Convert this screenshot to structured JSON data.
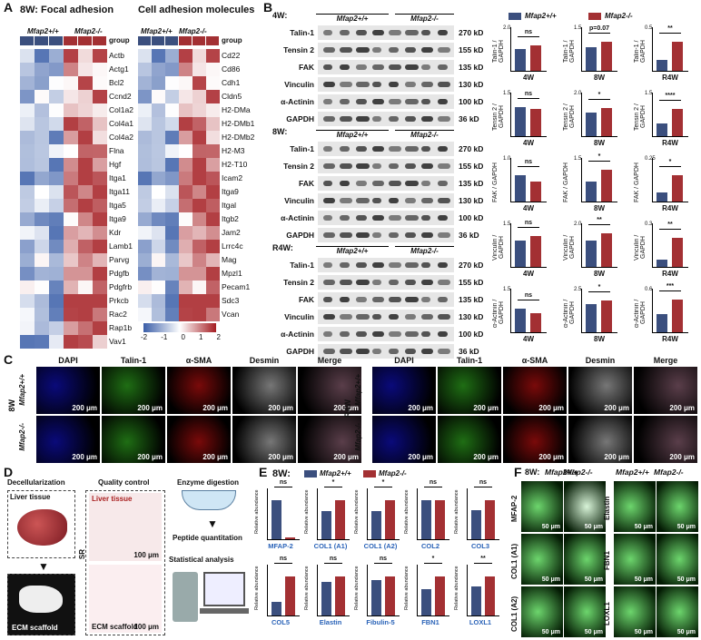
{
  "panels": {
    "A": "A",
    "B": "B",
    "C": "C",
    "D": "D",
    "E": "E",
    "F": "F"
  },
  "A": {
    "left_title": "8W:  Focal adhesion",
    "right_title": "Cell adhesion molecules",
    "group_label": "group",
    "wt": "Mfap2+/+",
    "ko": "Mfap2-/-",
    "left_genes": [
      "Actb",
      "Actg1",
      "Bcl2",
      "Ccnd2",
      "Col1a2",
      "Col4a1",
      "Col4a2",
      "Flna",
      "Hgf",
      "Itga1",
      "Itga11",
      "Itga5",
      "Itga9",
      "Kdr",
      "Lamb1",
      "Parvg",
      "Pdgfb",
      "Pdgfrb",
      "Prkcb",
      "Rac2",
      "Rap1b",
      "Vav1"
    ],
    "right_genes": [
      "Cd22",
      "Cd86",
      "Cdh1",
      "Cldn5",
      "H2-DMa",
      "H2-DMb1",
      "H2-DMb2",
      "H2-M3",
      "H2-T10",
      "Icam2",
      "Itga9",
      "Itgal",
      "Itgb2",
      "Jam2",
      "Lrrc4c",
      "Mag",
      "Mpzl1",
      "Pecam1",
      "Sdc3",
      "Vcan"
    ],
    "scale": [
      "-2",
      "-1",
      "0",
      "1",
      "2"
    ]
  },
  "B": {
    "legend": {
      "wt": "Mfap2+/+",
      "ko": "Mfap2-/-"
    },
    "blots": [
      {
        "time": "4W:",
        "rows": [
          "Talin-1",
          "Tensin 2",
          "FAK",
          "Vinculin",
          "α-Actinin",
          "GAPDH"
        ],
        "kd": [
          "270 kD",
          "155 kD",
          "135 kD",
          "130 kD",
          "100 kD",
          "36 kD"
        ]
      },
      {
        "time": "8W:",
        "rows": [
          "Talin-1",
          "Tensin 2",
          "FAK",
          "Vinculin",
          "α-Actinin",
          "GAPDH"
        ],
        "kd": [
          "270 kD",
          "155 kD",
          "135 kD",
          "130 kD",
          "100 kD",
          "36 kD"
        ]
      },
      {
        "time": "R4W:",
        "rows": [
          "Talin-1",
          "Tensin 2",
          "FAK",
          "Vinculin",
          "α-Actinin",
          "GAPDH"
        ],
        "kd": [
          "270 kD",
          "155 kD",
          "135 kD",
          "130 kD",
          "100 kD",
          "36 kD"
        ]
      }
    ],
    "bar_rows": [
      {
        "ylabel": "Talin-1 / GAPDH",
        "charts": [
          {
            "x": "4W",
            "sig": "ns",
            "wt": 1.0,
            "ko": 1.15,
            "ymax": "2.0"
          },
          {
            "x": "8W",
            "sig": "p=0.07",
            "wt": 0.8,
            "ko": 1.0,
            "ymax": "1.5"
          },
          {
            "x": "R4W",
            "sig": "**",
            "wt": 0.12,
            "ko": 0.33,
            "ymax": "0.5"
          }
        ]
      },
      {
        "ylabel": "Tensin 2 / GAPDH",
        "charts": [
          {
            "x": "4W",
            "sig": "ns",
            "wt": 1.0,
            "ko": 0.95,
            "ymax": "1.5"
          },
          {
            "x": "8W",
            "sig": "*",
            "wt": 1.1,
            "ko": 1.3,
            "ymax": "2.0"
          },
          {
            "x": "R4W",
            "sig": "****",
            "wt": 0.45,
            "ko": 0.95,
            "ymax": "1.5"
          }
        ]
      },
      {
        "ylabel": "FAK / GAPDH",
        "charts": [
          {
            "x": "4W",
            "sig": "ns",
            "wt": 0.6,
            "ko": 0.45,
            "ymax": "1.0"
          },
          {
            "x": "8W",
            "sig": "*",
            "wt": 0.7,
            "ko": 1.1,
            "ymax": "1.5"
          },
          {
            "x": "R4W",
            "sig": "*",
            "wt": 0.05,
            "ko": 0.15,
            "ymax": "0.25"
          }
        ]
      },
      {
        "ylabel": "Vinculin / GAPDH",
        "charts": [
          {
            "x": "4W",
            "sig": "ns",
            "wt": 0.9,
            "ko": 1.05,
            "ymax": "1.5"
          },
          {
            "x": "8W",
            "sig": "**",
            "wt": 1.2,
            "ko": 1.55,
            "ymax": "2.0"
          },
          {
            "x": "R4W",
            "sig": "**",
            "wt": 0.05,
            "ko": 0.2,
            "ymax": "0.3"
          }
        ]
      },
      {
        "ylabel": "α-Actinin / GAPDH",
        "charts": [
          {
            "x": "4W",
            "sig": "ns",
            "wt": 0.8,
            "ko": 0.65,
            "ymax": "1.5"
          },
          {
            "x": "8W",
            "sig": "*",
            "wt": 1.6,
            "ko": 1.8,
            "ymax": "2.5"
          },
          {
            "x": "R4W",
            "sig": "***",
            "wt": 0.25,
            "ko": 0.45,
            "ymax": "0.6"
          }
        ]
      }
    ]
  },
  "C": {
    "cols": [
      "DAPI",
      "Talin-1",
      "α-SMA",
      "Desmin",
      "Merge"
    ],
    "left_time": "8W",
    "right_time": "R4W",
    "rows": [
      "Mfap2+/+",
      "Mfap2-/-"
    ],
    "scale": "200 μm"
  },
  "D": {
    "decell": "Decellularization",
    "qc": "Quality control",
    "liver": "Liver tissue",
    "ecm": "ECM scaffold",
    "sr": "SR",
    "scale": "100 μm",
    "steps": [
      "Enzyme digestion",
      "Peptide quantitation",
      "Statistical analysis"
    ]
  },
  "E": {
    "time": "8W:",
    "legend": {
      "wt": "Mfap2+/+",
      "ko": "Mfap2-/-"
    },
    "ylabel": "Relative abundance",
    "charts": [
      {
        "name": "MFAP-2",
        "sig": "ns",
        "wt": 1.2,
        "ko": 0.05
      },
      {
        "name": "COL1 (A1)",
        "sig": "*",
        "wt": 1.0,
        "ko": 1.4
      },
      {
        "name": "COL1 (A2)",
        "sig": "*",
        "wt": 1.6,
        "ko": 2.2
      },
      {
        "name": "COL2",
        "sig": "ns",
        "wt": 1.0,
        "ko": 1.0
      },
      {
        "name": "COL3",
        "sig": "ns",
        "wt": 2.8,
        "ko": 3.8
      },
      {
        "name": "COL5",
        "sig": "ns",
        "wt": 0.5,
        "ko": 1.4
      },
      {
        "name": "Elastin",
        "sig": "ns",
        "wt": 6.5,
        "ko": 7.5
      },
      {
        "name": "Fibulin-5",
        "sig": "ns",
        "wt": 0.9,
        "ko": 1.0
      },
      {
        "name": "FBN1",
        "sig": "*",
        "wt": 3.5,
        "ko": 5.2
      },
      {
        "name": "LOXL1",
        "sig": "**",
        "wt": 5.2,
        "ko": 7.0
      }
    ]
  },
  "F": {
    "time": "8W:",
    "cols": [
      "Mfap2+/+",
      "Mfap2-/-",
      "Mfap2+/+",
      "Mfap2-/-"
    ],
    "left_rows": [
      "MFAP-2",
      "COL1 (A1)",
      "COL1 (A2)"
    ],
    "right_rows": [
      "Elastin",
      "FBN1",
      "LOXL1"
    ],
    "scale": "50 μm"
  },
  "colors": {
    "wt": "#3b4f7e",
    "ko": "#a33033",
    "heat_blue": "#3a5ea8",
    "heat_red": "#a51d22"
  }
}
